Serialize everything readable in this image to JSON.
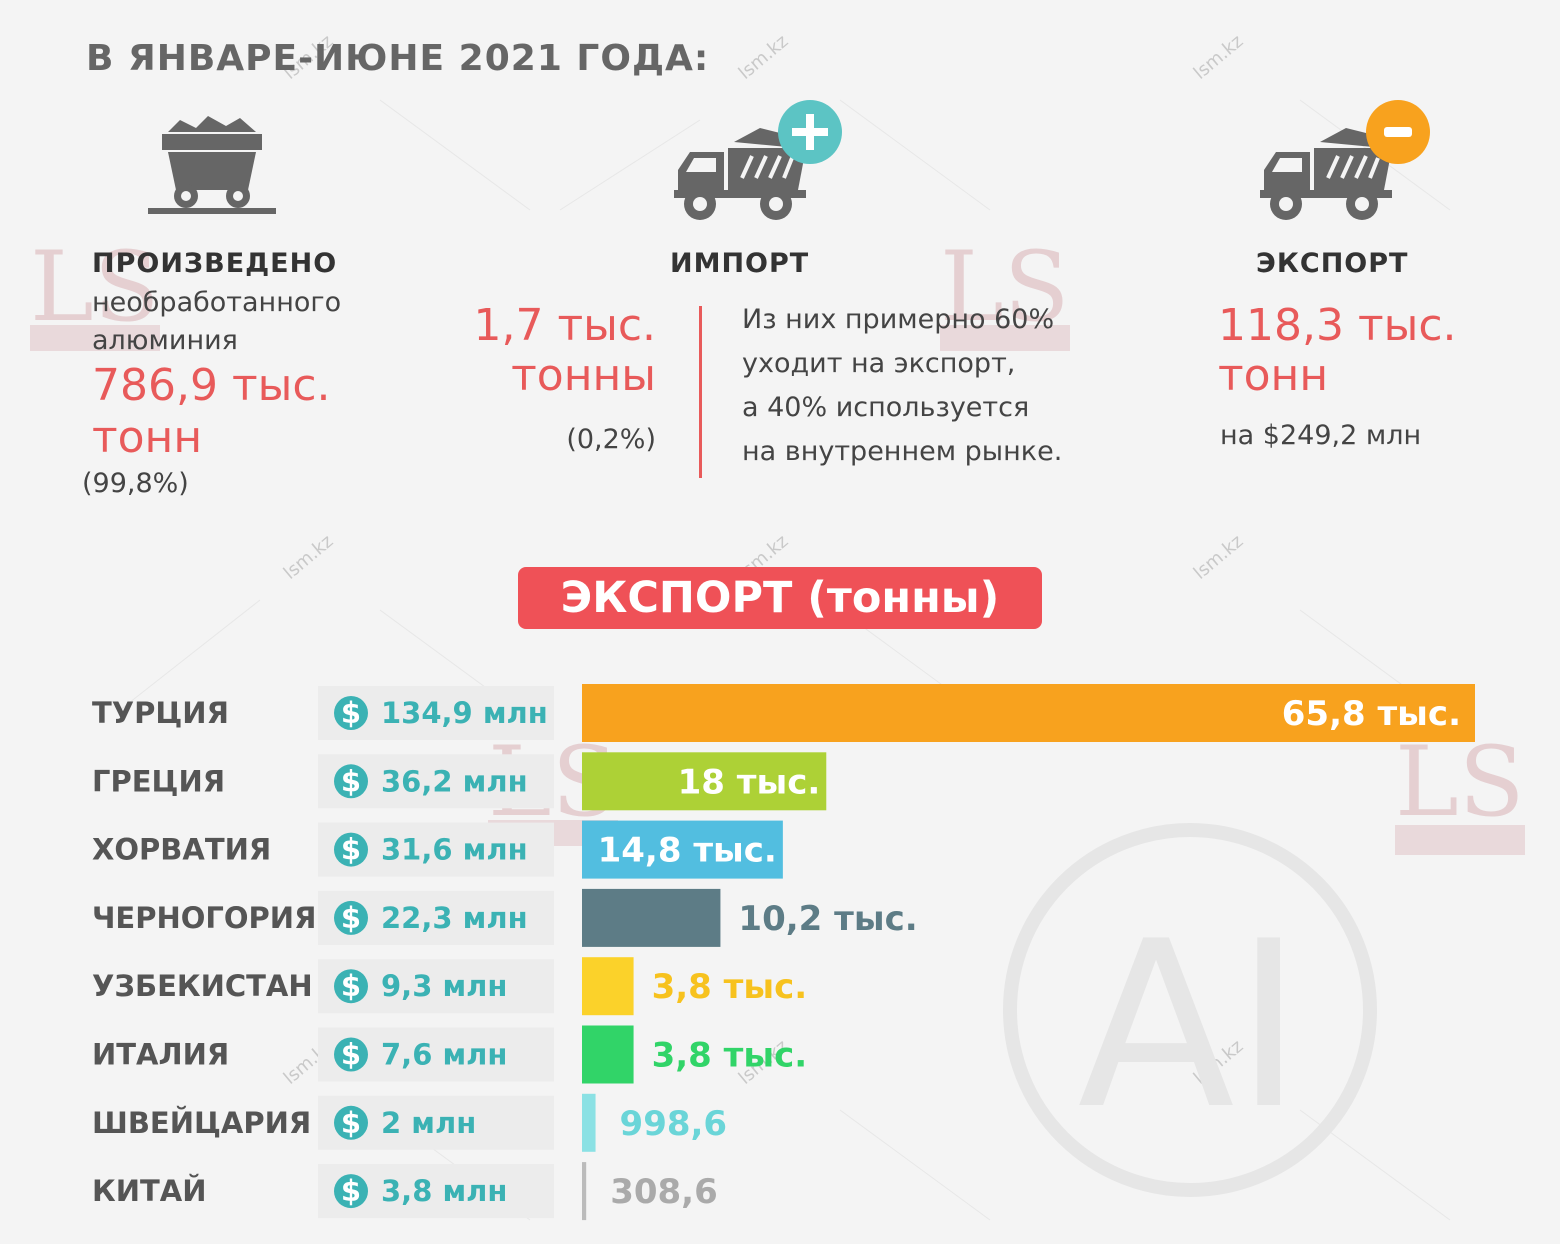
{
  "header": "В ЯНВАРЕ-ИЮНЕ 2021 ГОДА:",
  "produced": {
    "title": "ПРОИЗВЕДЕНО",
    "subtitle_1": "необработанного",
    "subtitle_2": "алюминия",
    "value_1": "786,9 тыс.",
    "value_2": "тонн",
    "share": "(99,8%)"
  },
  "import": {
    "title": "ИМПОРТ",
    "value_1": "1,7 тыс.",
    "value_2": "тонны",
    "share": "(0,2%)",
    "note": [
      "Из них примерно 60%",
      "уходит на экспорт,",
      "а 40% используется",
      "на внутреннем рынке."
    ]
  },
  "export": {
    "title": "ЭКСПОРТ",
    "value_1": "118,3 тыс.",
    "value_2": "тонн",
    "amount": "на $249,2 млн"
  },
  "colors": {
    "accent_red": "#e85a5a",
    "title_bg": "#ef5157",
    "money_text": "#3bb2b4",
    "plus_badge": "#5cc4c4",
    "minus_badge": "#f8a21e"
  },
  "icons": [
    "mine-cart-icon",
    "dump-truck-icon",
    "plus-icon",
    "minus-icon",
    "dollar-icon"
  ],
  "watermarks": {
    "logo": "LS",
    "site": "lsm.kz",
    "corner": "AI"
  },
  "chart_data": {
    "type": "bar",
    "orientation": "horizontal",
    "title": "ЭКСПОРТ (тонны)",
    "unit": "тонны",
    "categories": [
      "ТУРЦИЯ",
      "ГРЕЦИЯ",
      "ХОРВАТИЯ",
      "ЧЕРНОГОРИЯ",
      "УЗБЕКИСТАН",
      "ИТАЛИЯ",
      "ШВЕЙЦАРИЯ",
      "КИТАЙ"
    ],
    "values": [
      65800,
      18000,
      14800,
      10200,
      3800,
      3800,
      998.6,
      308.6
    ],
    "value_labels": [
      "65,8 тыс.",
      "18 тыс.",
      "14,8 тыс.",
      "10,2 тыс.",
      "3,8 тыс.",
      "3,8 тыс.",
      "998,6",
      "308,6"
    ],
    "money_labels": [
      "134,9 млн",
      "36,2 млн",
      "31,6 млн",
      "22,3 млн",
      "9,3 млн",
      "7,6 млн",
      "2 млн",
      "3,8 млн"
    ],
    "money_symbol": "$",
    "colors": [
      "#f8a21e",
      "#add136",
      "#52bee0",
      "#5d7c86",
      "#fbd22a",
      "#31d468",
      "#8be1e4",
      "#bbbbbb"
    ],
    "label_colors": [
      "#ffffff",
      "#ffffff",
      "#ffffff",
      "#5d7c86",
      "#f7c21e",
      "#31d468",
      "#6ad5d8",
      "#aaaaaa"
    ],
    "xlim": [
      0,
      65800
    ],
    "grid": false,
    "legend": "none"
  }
}
